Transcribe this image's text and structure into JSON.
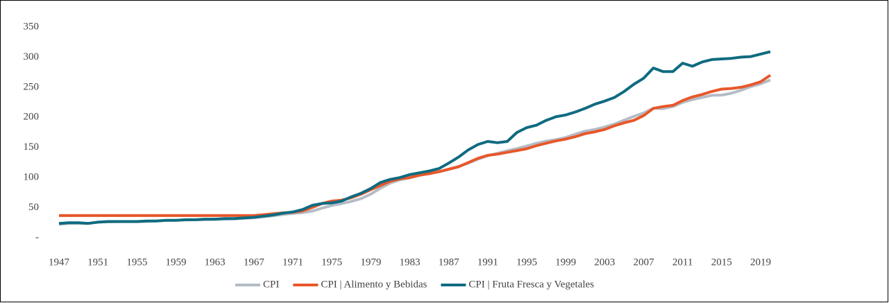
{
  "chart_data": {
    "type": "line",
    "x": [
      1947,
      1948,
      1949,
      1950,
      1951,
      1952,
      1953,
      1954,
      1955,
      1956,
      1957,
      1958,
      1959,
      1960,
      1961,
      1962,
      1963,
      1964,
      1965,
      1966,
      1967,
      1968,
      1969,
      1970,
      1971,
      1972,
      1973,
      1974,
      1975,
      1976,
      1977,
      1978,
      1979,
      1980,
      1981,
      1982,
      1983,
      1984,
      1985,
      1986,
      1987,
      1988,
      1989,
      1990,
      1991,
      1992,
      1993,
      1994,
      1995,
      1996,
      1997,
      1998,
      1999,
      2000,
      2001,
      2002,
      2003,
      2004,
      2005,
      2006,
      2007,
      2008,
      2009,
      2010,
      2011,
      2012,
      2013,
      2014,
      2015,
      2016,
      2017,
      2018,
      2019,
      2020
    ],
    "series": [
      {
        "name": "CPI",
        "color": "#b4bcc5",
        "values": [
          22.3,
          24.0,
          23.8,
          24.1,
          26.0,
          26.5,
          26.7,
          26.9,
          26.8,
          27.2,
          28.1,
          28.9,
          29.1,
          29.6,
          29.9,
          30.2,
          30.6,
          31.0,
          31.5,
          32.4,
          33.4,
          34.8,
          36.7,
          38.8,
          40.5,
          41.8,
          44.4,
          49.3,
          53.8,
          56.9,
          60.6,
          65.2,
          72.6,
          82.4,
          90.9,
          96.5,
          99.6,
          103.9,
          107.6,
          109.6,
          113.6,
          118.3,
          124.0,
          130.7,
          136.2,
          140.3,
          144.5,
          148.2,
          152.4,
          156.9,
          160.5,
          163.0,
          166.6,
          172.2,
          177.1,
          179.9,
          184.0,
          188.9,
          195.3,
          201.6,
          207.3,
          215.3,
          214.5,
          218.1,
          224.9,
          229.6,
          233.0,
          236.7,
          237.0,
          240.0,
          245.1,
          251.1,
          255.7,
          262
        ]
      },
      {
        "name": "CPI | Alimento y Bebidas",
        "color": "#e8572a",
        "values": [
          37,
          37,
          37,
          37,
          37,
          37,
          37,
          37,
          37,
          37,
          37,
          37,
          37,
          37,
          37,
          37,
          37,
          37,
          37,
          37,
          37,
          38.5,
          40,
          41.5,
          42.5,
          44.5,
          50.5,
          57,
          61,
          62.5,
          66.5,
          72.5,
          80,
          87,
          94,
          98,
          100,
          104,
          106.5,
          110,
          114,
          118,
          125,
          132,
          137,
          139,
          142,
          145,
          148,
          153,
          157,
          161,
          164,
          168,
          173,
          176,
          180,
          186,
          191,
          195,
          203,
          215,
          218,
          220,
          228,
          234,
          238,
          243,
          247,
          248,
          250,
          254,
          259,
          270
        ]
      },
      {
        "name": "CPI | Fruta Fresca y Vegetales",
        "color": "#0e6b80",
        "values": [
          24,
          25,
          25,
          24,
          26,
          27,
          27,
          27,
          27,
          28,
          28,
          29,
          29,
          30,
          30,
          31,
          31,
          32,
          32,
          33,
          34,
          36,
          38,
          41,
          43,
          47,
          54,
          57,
          58,
          61,
          68,
          74,
          82,
          92,
          97,
          100,
          105,
          108,
          111,
          115,
          124,
          134,
          146,
          155,
          160,
          158,
          160,
          175,
          183,
          187,
          195,
          201,
          204,
          209,
          215,
          222,
          227,
          233,
          243,
          255,
          265,
          282,
          276,
          276,
          290,
          285,
          292,
          296,
          297,
          298,
          300,
          301,
          305,
          309
        ]
      }
    ],
    "xlim": [
      1946.5,
      2020.5
    ],
    "xticks": [
      1947,
      1951,
      1955,
      1959,
      1963,
      1967,
      1971,
      1975,
      1979,
      1983,
      1987,
      1991,
      1995,
      1999,
      2003,
      2007,
      2011,
      2015,
      2019
    ],
    "ylim": [
      0,
      350
    ],
    "yticks": [
      {
        "value": 0,
        "label": "-"
      },
      50,
      100,
      150,
      200,
      250,
      300,
      350
    ],
    "grid": false,
    "legend": "bottom"
  }
}
